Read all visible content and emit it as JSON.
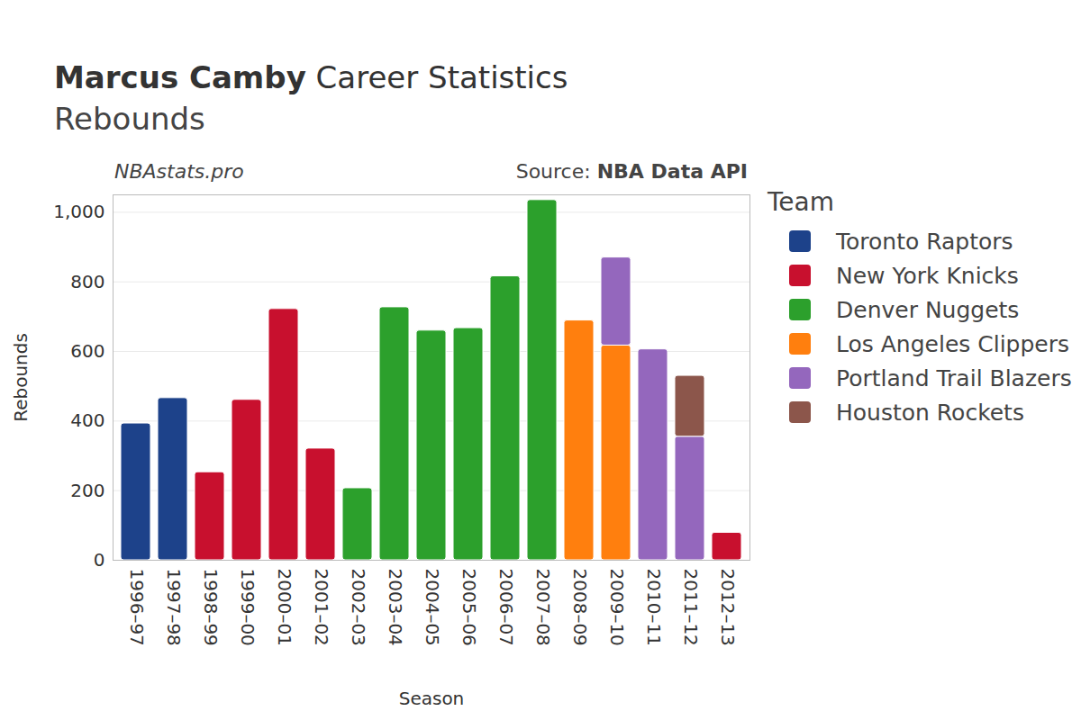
{
  "chart_data": {
    "type": "bar",
    "title": "Marcus Camby Career Statistics",
    "subtitle": "Rebounds",
    "annotations": [
      "NBAstats.pro",
      "Source: NBA Data API"
    ],
    "x_label": "Season",
    "y_label": "Rebounds",
    "legend_title": "Team",
    "categories": [
      "1996–97",
      "1997–98",
      "1998–99",
      "1999–00",
      "2000–01",
      "2001–02",
      "2002–03",
      "2003–04",
      "2004–05",
      "2005–06",
      "2006–07",
      "2007–08",
      "2008–09",
      "2009–10",
      "2010–11",
      "2011–12",
      "2012–13"
    ],
    "series": [
      {
        "name": "Toronto Raptors",
        "color": "#1d428a",
        "values": [
          393,
          466,
          null,
          null,
          null,
          null,
          null,
          null,
          null,
          null,
          null,
          null,
          null,
          null,
          null,
          null,
          null
        ]
      },
      {
        "name": "New York Knicks",
        "color": "#c8102e",
        "values": [
          null,
          null,
          253,
          461,
          722,
          321,
          null,
          null,
          null,
          null,
          null,
          null,
          null,
          null,
          null,
          null,
          79
        ]
      },
      {
        "name": "Denver Nuggets",
        "color": "#2ca02c",
        "values": [
          null,
          null,
          null,
          null,
          null,
          null,
          207,
          727,
          660,
          667,
          816,
          1035,
          null,
          null,
          null,
          null,
          null
        ]
      },
      {
        "name": "Los Angeles Clippers",
        "color": "#ff7f0e",
        "values": [
          null,
          null,
          null,
          null,
          null,
          null,
          null,
          null,
          null,
          null,
          null,
          null,
          689,
          617,
          null,
          null,
          null
        ]
      },
      {
        "name": "Portland Trail Blazers",
        "color": "#9467bd",
        "values": [
          null,
          null,
          null,
          null,
          null,
          null,
          null,
          null,
          null,
          null,
          null,
          null,
          null,
          253,
          606,
          355,
          null
        ]
      },
      {
        "name": "Houston Rockets",
        "color": "#8c564b",
        "values": [
          null,
          null,
          null,
          null,
          null,
          null,
          null,
          null,
          null,
          null,
          null,
          null,
          null,
          null,
          null,
          175,
          null
        ]
      }
    ],
    "ylim": [
      0,
      1050
    ],
    "yticks": [
      0,
      200,
      400,
      600,
      800,
      1000
    ],
    "stacked": true,
    "grid": true,
    "legend": "right"
  }
}
